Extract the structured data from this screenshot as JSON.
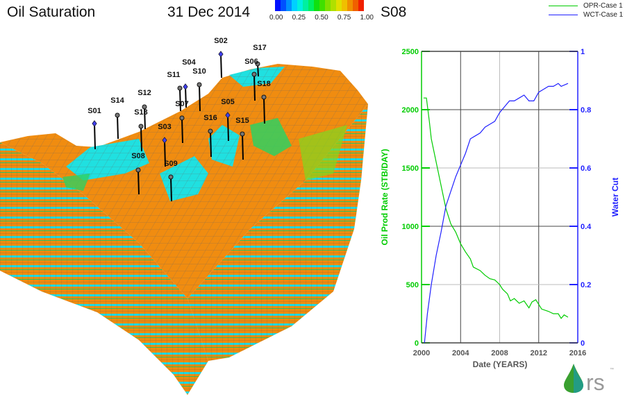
{
  "header": {
    "title": "Oil Saturation",
    "date": "31 Dec 2014",
    "well": "S08"
  },
  "colorbar": {
    "labels": [
      "0.00",
      "0.25",
      "0.50",
      "0.75",
      "1.00"
    ],
    "colors": [
      "#0010ff",
      "#0050ff",
      "#0090ff",
      "#00d0ff",
      "#00f0e0",
      "#00f0a0",
      "#00f060",
      "#10e010",
      "#40e000",
      "#80e000",
      "#b0e000",
      "#e0e000",
      "#f0c000",
      "#f09000",
      "#f06000",
      "#f02000"
    ]
  },
  "wells": [
    "S01",
    "S14",
    "S12",
    "S13",
    "S08",
    "S03",
    "S09",
    "S07",
    "S11",
    "S04",
    "S10",
    "S02",
    "S17",
    "S06",
    "S18",
    "S05",
    "S16",
    "S15"
  ],
  "logo": {
    "text": "rs",
    "tm": "™"
  },
  "colors": {
    "opr": "#00cc00",
    "wct": "#2020ff",
    "surface": "#f08c10",
    "water": "#20e0e0"
  },
  "chart_data": {
    "type": "line",
    "title": "S08",
    "xlabel": "Date (YEARS)",
    "ylabel": "Oil Prod Rate (STB/DAY)",
    "y2label": "Water Cut",
    "xlim": [
      2000,
      2016
    ],
    "ylim": [
      0,
      2500
    ],
    "y2lim": [
      0,
      1
    ],
    "xticks": [
      "2000",
      "2004",
      "2008",
      "2012",
      "2016"
    ],
    "yticks": [
      "0",
      "500",
      "1000",
      "1500",
      "2000",
      "2500"
    ],
    "y2ticks": [
      "0",
      "0.2",
      "0.4",
      "0.6",
      "0.8",
      "1"
    ],
    "grid": true,
    "legend": "top-right",
    "series": [
      {
        "name": "OPR-Case 1",
        "axis": "left",
        "x": [
          2000.2,
          2000.5,
          2000.8,
          2001,
          2001.5,
          2002,
          2002.5,
          2003,
          2003.5,
          2004,
          2004.5,
          2005,
          2005.3,
          2006,
          2006.5,
          2007,
          2007.5,
          2008,
          2008.3,
          2008.8,
          2009.1,
          2009.5,
          2010,
          2010.5,
          2011,
          2011.3,
          2011.7,
          2012,
          2012.3,
          2013,
          2013.5,
          2014,
          2014.3,
          2014.6,
          2015
        ],
        "values": [
          2100,
          2100,
          1900,
          1750,
          1550,
          1350,
          1150,
          1020,
          950,
          850,
          780,
          720,
          650,
          620,
          580,
          550,
          540,
          500,
          460,
          420,
          360,
          380,
          340,
          360,
          300,
          350,
          370,
          330,
          290,
          270,
          250,
          250,
          210,
          240,
          220
        ]
      },
      {
        "name": "WCT-Case 1",
        "axis": "right",
        "x": [
          2000.3,
          2000.6,
          2001,
          2001.5,
          2002,
          2002.5,
          2003,
          2003.5,
          2004,
          2004.5,
          2005,
          2005.5,
          2006,
          2006.5,
          2007,
          2007.5,
          2008,
          2008.5,
          2009,
          2009.5,
          2010,
          2010.5,
          2011,
          2011.5,
          2012,
          2012.5,
          2013,
          2013.5,
          2014,
          2014.3,
          2015
        ],
        "values": [
          0,
          0.1,
          0.2,
          0.3,
          0.38,
          0.47,
          0.52,
          0.57,
          0.61,
          0.65,
          0.7,
          0.71,
          0.72,
          0.74,
          0.75,
          0.76,
          0.79,
          0.81,
          0.83,
          0.83,
          0.84,
          0.85,
          0.83,
          0.83,
          0.86,
          0.87,
          0.88,
          0.88,
          0.89,
          0.88,
          0.89
        ]
      }
    ]
  }
}
